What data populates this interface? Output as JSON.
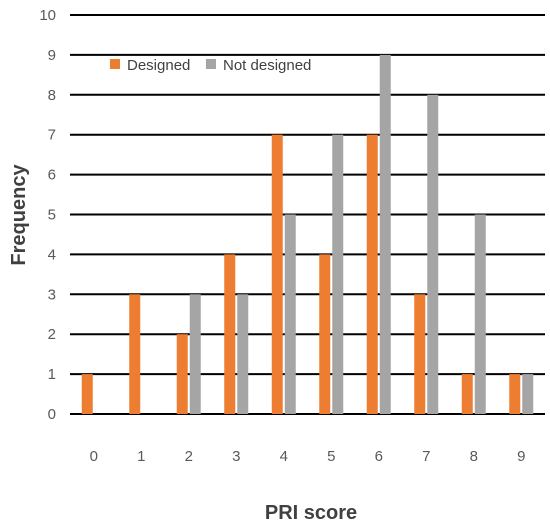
{
  "chart_data": {
    "type": "bar",
    "xlabel": "PRI score",
    "ylabel": "Frequency",
    "categories": [
      "0",
      "1",
      "2",
      "3",
      "4",
      "5",
      "6",
      "7",
      "8",
      "9"
    ],
    "ylim": [
      0,
      10
    ],
    "yticks": [
      "0",
      "1",
      "2",
      "3",
      "4",
      "5",
      "6",
      "7",
      "8",
      "9",
      "10"
    ],
    "grid": true,
    "legend_position": "top-left",
    "series": [
      {
        "name": "Designed",
        "color": "#ED7D31",
        "values": [
          1,
          3,
          2,
          4,
          7,
          4,
          7,
          3,
          1,
          1
        ]
      },
      {
        "name": "Not designed",
        "color": "#A5A5A5",
        "values": [
          0,
          0,
          3,
          3,
          5,
          7,
          9,
          8,
          5,
          1
        ]
      }
    ]
  }
}
